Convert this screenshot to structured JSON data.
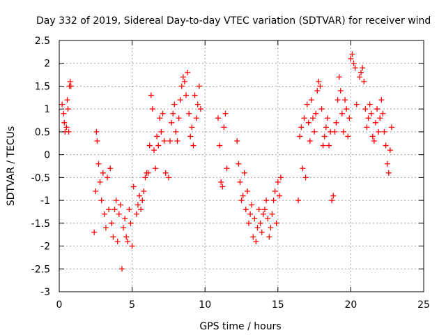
{
  "chart_data": {
    "type": "scatter",
    "title": "Day 332 of 2019, Sidereal Day-to-day VTEC variation (SDTVAR) for receiver wind",
    "xlabel": "GPS time / hours",
    "ylabel": "SDTVAR / TECUs",
    "xlim": [
      0,
      25
    ],
    "ylim": [
      -3,
      2.5
    ],
    "x_ticks": [
      "0",
      "5",
      "10",
      "15",
      "20",
      "25"
    ],
    "y_ticks": [
      "-3",
      "-2.5",
      "-2",
      "-1.5",
      "-1",
      "-0.5",
      "0",
      "0.5",
      "1",
      "1.5",
      "2",
      "2.5"
    ],
    "grid": true,
    "marker": "+",
    "color": "#ff0000",
    "series": [
      {
        "name": "SDTVAR",
        "x": [
          0.2,
          0.3,
          0.35,
          0.4,
          0.5,
          0.55,
          0.6,
          0.65,
          0.7,
          0.75,
          0.8,
          2.4,
          2.5,
          2.55,
          2.6,
          2.7,
          2.8,
          2.9,
          3.0,
          3.1,
          3.2,
          3.3,
          3.4,
          3.5,
          3.6,
          3.7,
          3.8,
          3.9,
          4.0,
          4.1,
          4.2,
          4.3,
          4.4,
          4.5,
          4.6,
          4.7,
          4.8,
          4.9,
          5.0,
          5.1,
          5.3,
          5.4,
          5.5,
          5.6,
          5.7,
          5.8,
          5.9,
          6.0,
          6.1,
          6.2,
          6.3,
          6.4,
          6.5,
          6.6,
          6.7,
          6.8,
          6.9,
          7.0,
          7.1,
          7.2,
          7.3,
          7.5,
          7.6,
          7.7,
          7.8,
          7.9,
          8.0,
          8.1,
          8.2,
          8.3,
          8.4,
          8.5,
          8.6,
          8.7,
          8.8,
          8.9,
          9.0,
          9.1,
          9.2,
          9.3,
          9.4,
          9.5,
          9.6,
          9.7,
          10.9,
          11.0,
          11.1,
          11.2,
          11.3,
          11.4,
          11.5,
          12.2,
          12.3,
          12.4,
          12.5,
          12.6,
          12.7,
          12.8,
          12.9,
          13.0,
          13.1,
          13.2,
          13.3,
          13.4,
          13.5,
          13.6,
          13.7,
          13.8,
          13.9,
          14.0,
          14.1,
          14.2,
          14.3,
          14.4,
          14.5,
          14.6,
          14.7,
          14.8,
          14.9,
          15.0,
          15.1,
          15.2,
          16.4,
          16.5,
          16.6,
          16.7,
          16.8,
          16.9,
          17.0,
          17.1,
          17.2,
          17.3,
          17.4,
          17.5,
          17.6,
          17.7,
          17.8,
          17.9,
          18.0,
          18.1,
          18.2,
          18.3,
          18.4,
          18.5,
          18.6,
          18.7,
          18.8,
          18.9,
          19.0,
          19.1,
          19.2,
          19.3,
          19.4,
          19.5,
          19.6,
          19.7,
          19.8,
          19.9,
          20.0,
          20.1,
          20.2,
          20.3,
          20.4,
          20.6,
          20.7,
          20.8,
          20.9,
          21.0,
          21.1,
          21.2,
          21.3,
          21.4,
          21.5,
          21.6,
          21.7,
          21.8,
          21.9,
          22.0,
          22.1,
          22.2,
          22.3,
          22.4,
          22.5,
          22.6,
          22.7,
          22.8
        ],
        "y": [
          1.1,
          0.9,
          0.7,
          0.5,
          0.6,
          1.2,
          1.0,
          0.5,
          1.5,
          1.6,
          1.5,
          -1.7,
          -0.8,
          0.5,
          0.3,
          -0.2,
          -0.6,
          -1.0,
          -0.4,
          -1.3,
          -1.6,
          -0.5,
          -1.2,
          -0.3,
          -1.5,
          -1.8,
          -1.2,
          -1.0,
          -1.9,
          -1.3,
          -1.1,
          -2.5,
          -1.6,
          -1.4,
          -1.8,
          -1.9,
          -1.2,
          -1.5,
          -2.0,
          -0.7,
          -1.3,
          -1.1,
          -0.9,
          -1.2,
          -1.0,
          -0.8,
          -0.5,
          -0.4,
          -0.4,
          0.2,
          1.3,
          1.0,
          0.1,
          -0.3,
          0.4,
          0.2,
          0.8,
          0.5,
          0.9,
          0.3,
          -0.4,
          -0.5,
          0.3,
          0.7,
          0.9,
          1.1,
          0.5,
          0.3,
          0.8,
          1.2,
          1.5,
          1.7,
          1.6,
          1.3,
          1.8,
          0.9,
          0.4,
          0.6,
          0.2,
          1.3,
          0.8,
          1.1,
          1.5,
          1.0,
          0.8,
          0.2,
          -0.6,
          -0.7,
          0.6,
          0.9,
          -0.3,
          0.3,
          -0.2,
          -0.6,
          -1.0,
          -0.9,
          -0.4,
          -1.2,
          -0.8,
          -1.5,
          -1.3,
          -1.1,
          -1.8,
          -1.4,
          -1.9,
          -1.6,
          -1.2,
          -1.5,
          -1.7,
          -1.3,
          -1.2,
          -1.0,
          -1.4,
          -1.8,
          -1.6,
          -1.3,
          -1.0,
          -0.8,
          -1.5,
          -0.6,
          -0.9,
          -0.5,
          -1.0,
          0.4,
          0.6,
          -0.3,
          0.8,
          -0.5,
          1.1,
          0.7,
          0.3,
          1.2,
          0.8,
          0.5,
          0.9,
          1.4,
          1.6,
          1.5,
          1.0,
          0.2,
          0.4,
          0.6,
          0.8,
          0.2,
          0.5,
          -1.0,
          -0.9,
          0.5,
          0.7,
          1.2,
          1.7,
          1.4,
          0.9,
          0.5,
          1.2,
          1.0,
          0.4,
          0.8,
          2.1,
          2.2,
          2.0,
          1.9,
          1.1,
          1.7,
          1.8,
          1.9,
          1.6,
          1.0,
          0.6,
          0.8,
          1.1,
          0.9,
          0.4,
          0.3,
          0.7,
          1.0,
          0.5,
          0.8,
          1.2,
          0.9,
          0.5,
          0.2,
          -0.2,
          -0.4,
          0.1,
          0.6
        ]
      }
    ]
  }
}
